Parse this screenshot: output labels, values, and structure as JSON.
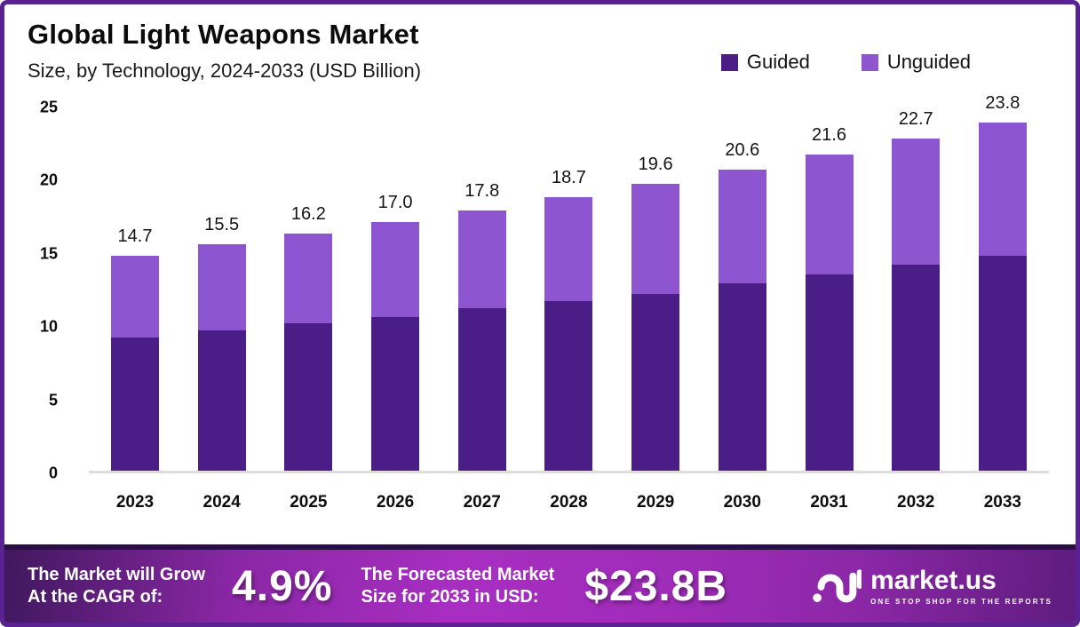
{
  "header": {
    "title": "Global Light Weapons Market",
    "subtitle": "Size, by Technology, 2024-2033 (USD Billion)"
  },
  "colors": {
    "guided": "#4a1d87",
    "unguided": "#8e55d0",
    "border": "#5a2193",
    "axis_line": "#dddddd",
    "footer_dark": "#40185e",
    "footer_bright": "#a72ec1"
  },
  "chart_data": {
    "type": "bar",
    "stacked": true,
    "title": "Global Light Weapons Market",
    "subtitle": "Size, by Technology, 2024-2033 (USD Billion)",
    "xlabel": "",
    "ylabel": "USD Billion",
    "ylim": [
      0,
      25
    ],
    "yticks": [
      0,
      5,
      10,
      15,
      20,
      25
    ],
    "grid": false,
    "legend_position": "top-right",
    "categories": [
      "2023",
      "2024",
      "2025",
      "2026",
      "2027",
      "2028",
      "2029",
      "2030",
      "2031",
      "2032",
      "2033"
    ],
    "series": [
      {
        "name": "Guided",
        "color": "#4a1d87",
        "values": [
          9.1,
          9.6,
          10.1,
          10.5,
          11.1,
          11.6,
          12.1,
          12.8,
          13.4,
          14.1,
          14.7
        ]
      },
      {
        "name": "Unguided",
        "color": "#8e55d0",
        "values": [
          5.6,
          5.9,
          6.1,
          6.5,
          6.7,
          7.1,
          7.5,
          7.8,
          8.2,
          8.6,
          9.1
        ]
      }
    ],
    "totals": [
      14.7,
      15.5,
      16.2,
      17.0,
      17.8,
      18.7,
      19.6,
      20.6,
      21.6,
      22.7,
      23.8
    ],
    "total_labels": [
      "14.7",
      "15.5",
      "16.2",
      "17.0",
      "17.8",
      "18.7",
      "19.6",
      "20.6",
      "21.6",
      "22.7",
      "23.8"
    ]
  },
  "legend": [
    {
      "label": "Guided",
      "color": "#4a1d87"
    },
    {
      "label": "Unguided",
      "color": "#8e55d0"
    }
  ],
  "footer": {
    "cagr_line1": "The Market will Grow",
    "cagr_line2": "At the CAGR of:",
    "cagr_value": "4.9%",
    "forecast_line1": "The Forecasted Market",
    "forecast_line2": "Size for 2033 in USD:",
    "forecast_value": "$23.8B",
    "brand": {
      "name": "market.us",
      "tagline": "ONE STOP SHOP FOR THE REPORTS"
    }
  }
}
